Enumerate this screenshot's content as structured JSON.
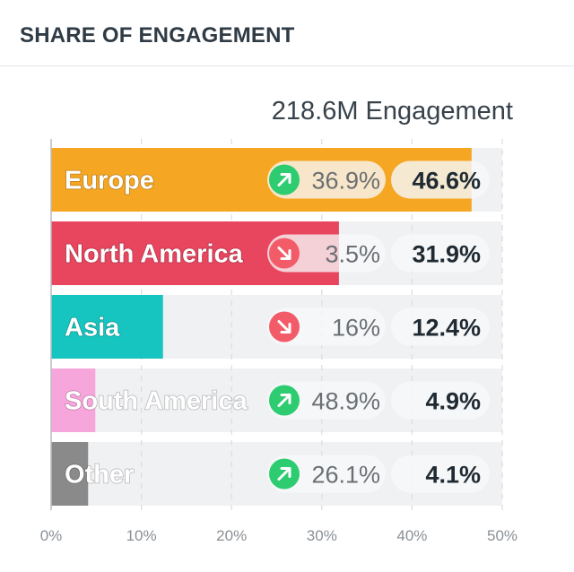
{
  "header": {
    "title": "SHARE OF ENGAGEMENT"
  },
  "total_label": "218.6M Engagement",
  "colors": {
    "track": "#f0f1f3",
    "up": "#2ecc71",
    "down": "#f25c69",
    "pill": "#f7f8f9",
    "grid": "#d9dce0"
  },
  "chart_data": {
    "type": "bar",
    "orientation": "horizontal",
    "title": "SHARE OF ENGAGEMENT",
    "subtitle": "218.6M Engagement",
    "categories": [
      "Europe",
      "North America",
      "Asia",
      "South America",
      "Other"
    ],
    "values": [
      46.6,
      31.9,
      12.4,
      4.9,
      4.1
    ],
    "value_labels": [
      "46.6%",
      "31.9%",
      "12.4%",
      "4.9%",
      "4.1%"
    ],
    "bar_colors": [
      "#f5a623",
      "#e8455f",
      "#16c5c0",
      "#f7a6dc",
      "#8a8a8a"
    ],
    "changes": [
      {
        "label": "36.9%",
        "direction": "up"
      },
      {
        "label": "3.5%",
        "direction": "down"
      },
      {
        "label": "16%",
        "direction": "down"
      },
      {
        "label": "48.9%",
        "direction": "up"
      },
      {
        "label": "26.1%",
        "direction": "up"
      }
    ],
    "xlim": [
      0,
      50
    ],
    "xticks": [
      0,
      10,
      20,
      30,
      40,
      50
    ],
    "xtick_labels": [
      "0%",
      "10%",
      "20%",
      "30%",
      "40%",
      "50%"
    ],
    "grid": true
  }
}
